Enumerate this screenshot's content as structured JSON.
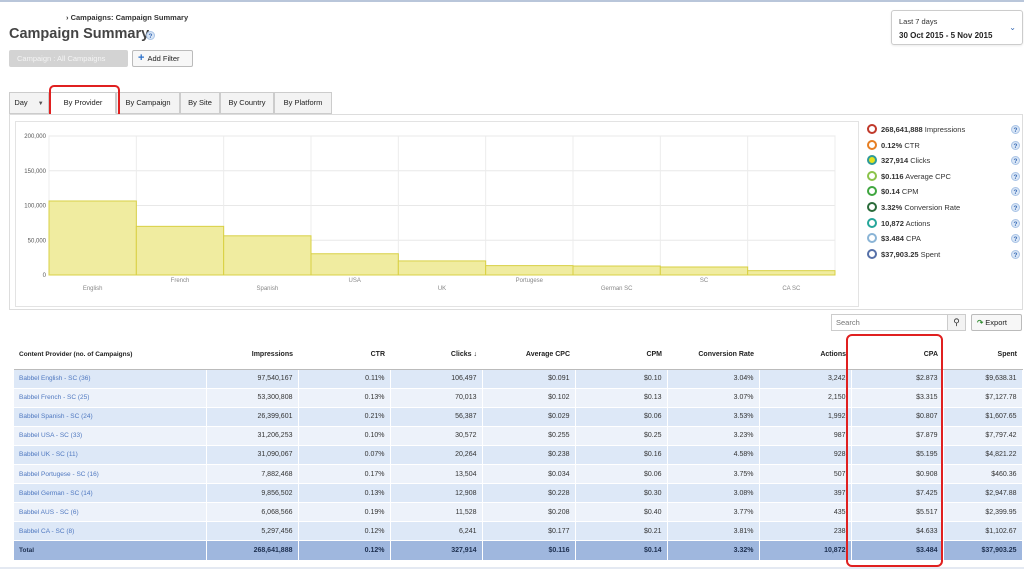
{
  "header": {
    "breadcrumb": "› Campaigns: Campaign Summary",
    "title": "Campaign Summary",
    "help": "?"
  },
  "filters": {
    "campaign_filter": "Campaign : All Campaigns",
    "add_filter": "Add Filter"
  },
  "date_picker": {
    "label": "Last 7 days",
    "range": "30 Oct 2015 - 5 Nov 2015"
  },
  "tabs": [
    {
      "label": "Day"
    },
    {
      "label": "By Provider",
      "active": true
    },
    {
      "label": "By Campaign"
    },
    {
      "label": "By Site"
    },
    {
      "label": "By Country"
    },
    {
      "label": "By Platform"
    }
  ],
  "chart_data": {
    "type": "bar",
    "categories": [
      "English",
      "French",
      "Spanish",
      "USA",
      "UK",
      "Portugese",
      "German SC",
      "SC",
      "CA SC"
    ],
    "values": [
      106497,
      70013,
      56387,
      30572,
      20264,
      13504,
      12908,
      11528,
      6241
    ],
    "yticks": [
      "200,000",
      "150,000",
      "100,000",
      "50,000",
      "0"
    ],
    "ylim": [
      0,
      200000
    ],
    "bar_color": "#f0eca0",
    "bar_border": "#d8d044",
    "grid": true
  },
  "metrics": [
    {
      "value": "268,641,888",
      "name": "Impressions",
      "color": "#c0392b",
      "selected": false
    },
    {
      "value": "0.12%",
      "name": "CTR",
      "color": "#e67e22",
      "selected": false
    },
    {
      "value": "327,914",
      "name": "Clicks",
      "color": "#2e9a9a",
      "selected": true
    },
    {
      "value": "$0.116",
      "name": "Average CPC",
      "color": "#8bc34a",
      "selected": false
    },
    {
      "value": "$0.14",
      "name": "CPM",
      "color": "#3fa63f",
      "selected": false
    },
    {
      "value": "3.32%",
      "name": "Conversion Rate",
      "color": "#2a6b3a",
      "selected": false
    },
    {
      "value": "10,872",
      "name": "Actions",
      "color": "#26a69a",
      "selected": false
    },
    {
      "value": "$3.484",
      "name": "CPA",
      "color": "#8ab4d6",
      "selected": false
    },
    {
      "value": "$37,903.25",
      "name": "Spent",
      "color": "#5670a8",
      "selected": false
    }
  ],
  "search": {
    "placeholder": "Search"
  },
  "export": {
    "label": "Export"
  },
  "table": {
    "columns": [
      "Content Provider (no. of Campaigns)",
      "Impressions",
      "CTR",
      "Clicks ↓",
      "Average CPC",
      "CPM",
      "Conversion Rate",
      "Actions",
      "CPA",
      "Spent"
    ],
    "rows": [
      [
        "Babbel English - SC (36)",
        "97,540,167",
        "0.11%",
        "106,497",
        "$0.091",
        "$0.10",
        "3.04%",
        "3,242",
        "$2.873",
        "$9,638.31"
      ],
      [
        "Babbel French - SC (25)",
        "53,300,808",
        "0.13%",
        "70,013",
        "$0.102",
        "$0.13",
        "3.07%",
        "2,150",
        "$3.315",
        "$7,127.78"
      ],
      [
        "Babbel Spanish - SC (24)",
        "26,399,601",
        "0.21%",
        "56,387",
        "$0.029",
        "$0.06",
        "3.53%",
        "1,992",
        "$0.807",
        "$1,607.65"
      ],
      [
        "Babbel USA - SC (33)",
        "31,206,253",
        "0.10%",
        "30,572",
        "$0.255",
        "$0.25",
        "3.23%",
        "987",
        "$7.879",
        "$7,797.42"
      ],
      [
        "Babbel UK - SC (11)",
        "31,090,067",
        "0.07%",
        "20,264",
        "$0.238",
        "$0.16",
        "4.58%",
        "928",
        "$5.195",
        "$4,821.22"
      ],
      [
        "Babbel Portugese - SC (16)",
        "7,882,468",
        "0.17%",
        "13,504",
        "$0.034",
        "$0.06",
        "3.75%",
        "507",
        "$0.908",
        "$460.36"
      ],
      [
        "Babbel German - SC (14)",
        "9,856,502",
        "0.13%",
        "12,908",
        "$0.228",
        "$0.30",
        "3.08%",
        "397",
        "$7.425",
        "$2,947.88"
      ],
      [
        "Babbel AUS - SC (6)",
        "6,068,566",
        "0.19%",
        "11,528",
        "$0.208",
        "$0.40",
        "3.77%",
        "435",
        "$5.517",
        "$2,399.95"
      ],
      [
        "Babbel CA - SC (8)",
        "5,297,456",
        "0.12%",
        "6,241",
        "$0.177",
        "$0.21",
        "3.81%",
        "238",
        "$4.633",
        "$1,102.67"
      ]
    ],
    "total": [
      "Total",
      "268,641,888",
      "0.12%",
      "327,914",
      "$0.116",
      "$0.14",
      "3.32%",
      "10,872",
      "$3.484",
      "$37,903.25"
    ]
  }
}
